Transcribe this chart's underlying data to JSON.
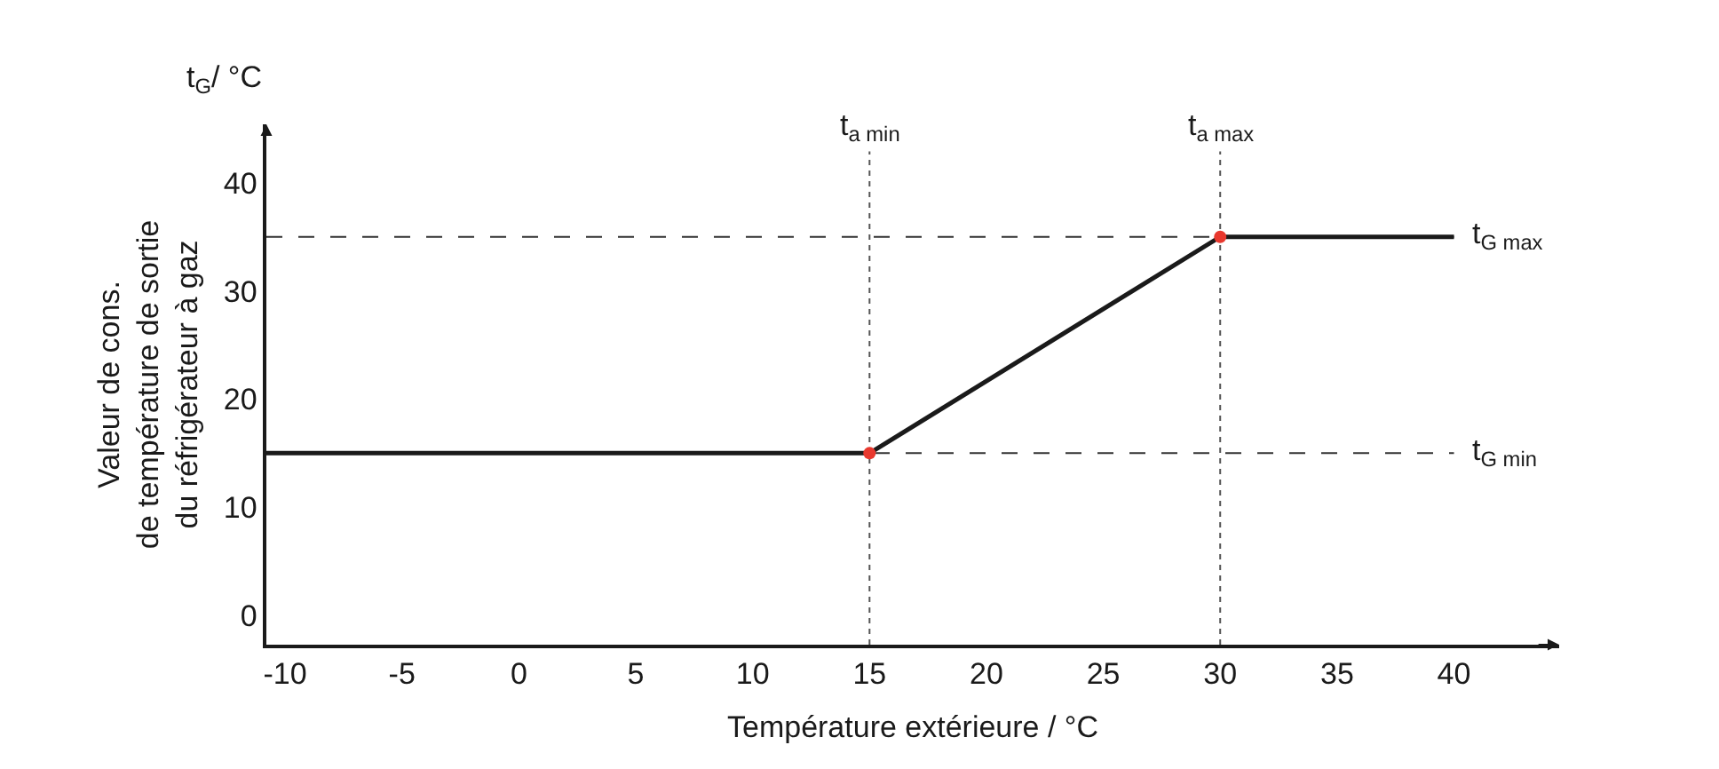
{
  "chart_data": {
    "type": "line",
    "xlabel": "Température extérieure / °C",
    "ylabel": "Valeur de cons.\nde température de sortie\ndu réfrigérateur à gaz",
    "annotations": [
      "t$_{G}$/ °C"
    ],
    "x": [
      -10.8,
      15,
      30,
      40
    ],
    "series": [
      {
        "color": "#1a1a1a",
        "values": [
          15,
          15,
          35,
          35
        ],
        "marker": "none"
      },
      {
        "type": "scatter",
        "color": "#e8382e",
        "x": [
          15,
          30
        ],
        "values": [
          15,
          35
        ],
        "marker": "circle"
      }
    ],
    "xlim": [
      -10.8,
      44.5
    ],
    "ylim": [
      -2.7,
      45.4
    ],
    "xticks": [
      -10,
      -5,
      0,
      5,
      10,
      15,
      20,
      25,
      30,
      35,
      40
    ],
    "yticks": [
      0,
      10,
      20,
      30,
      40
    ],
    "ref_lines": [
      {
        "axis": "y",
        "value": 35,
        "label": "t$_{G max}$",
        "line_style": "dashed",
        "color": "#333333"
      },
      {
        "axis": "y",
        "value": 15,
        "label": "t$_{G min}$",
        "line_style": "dashed",
        "color": "#333333"
      },
      {
        "axis": "x",
        "value": 15,
        "label": "t$_{a min}$",
        "line_style": "dotted",
        "color": "#555555"
      },
      {
        "axis": "x",
        "value": 30,
        "label": "t$_{a max}$",
        "line_style": "dotted",
        "color": "#555555"
      }
    ],
    "grid": false,
    "legend": false
  }
}
